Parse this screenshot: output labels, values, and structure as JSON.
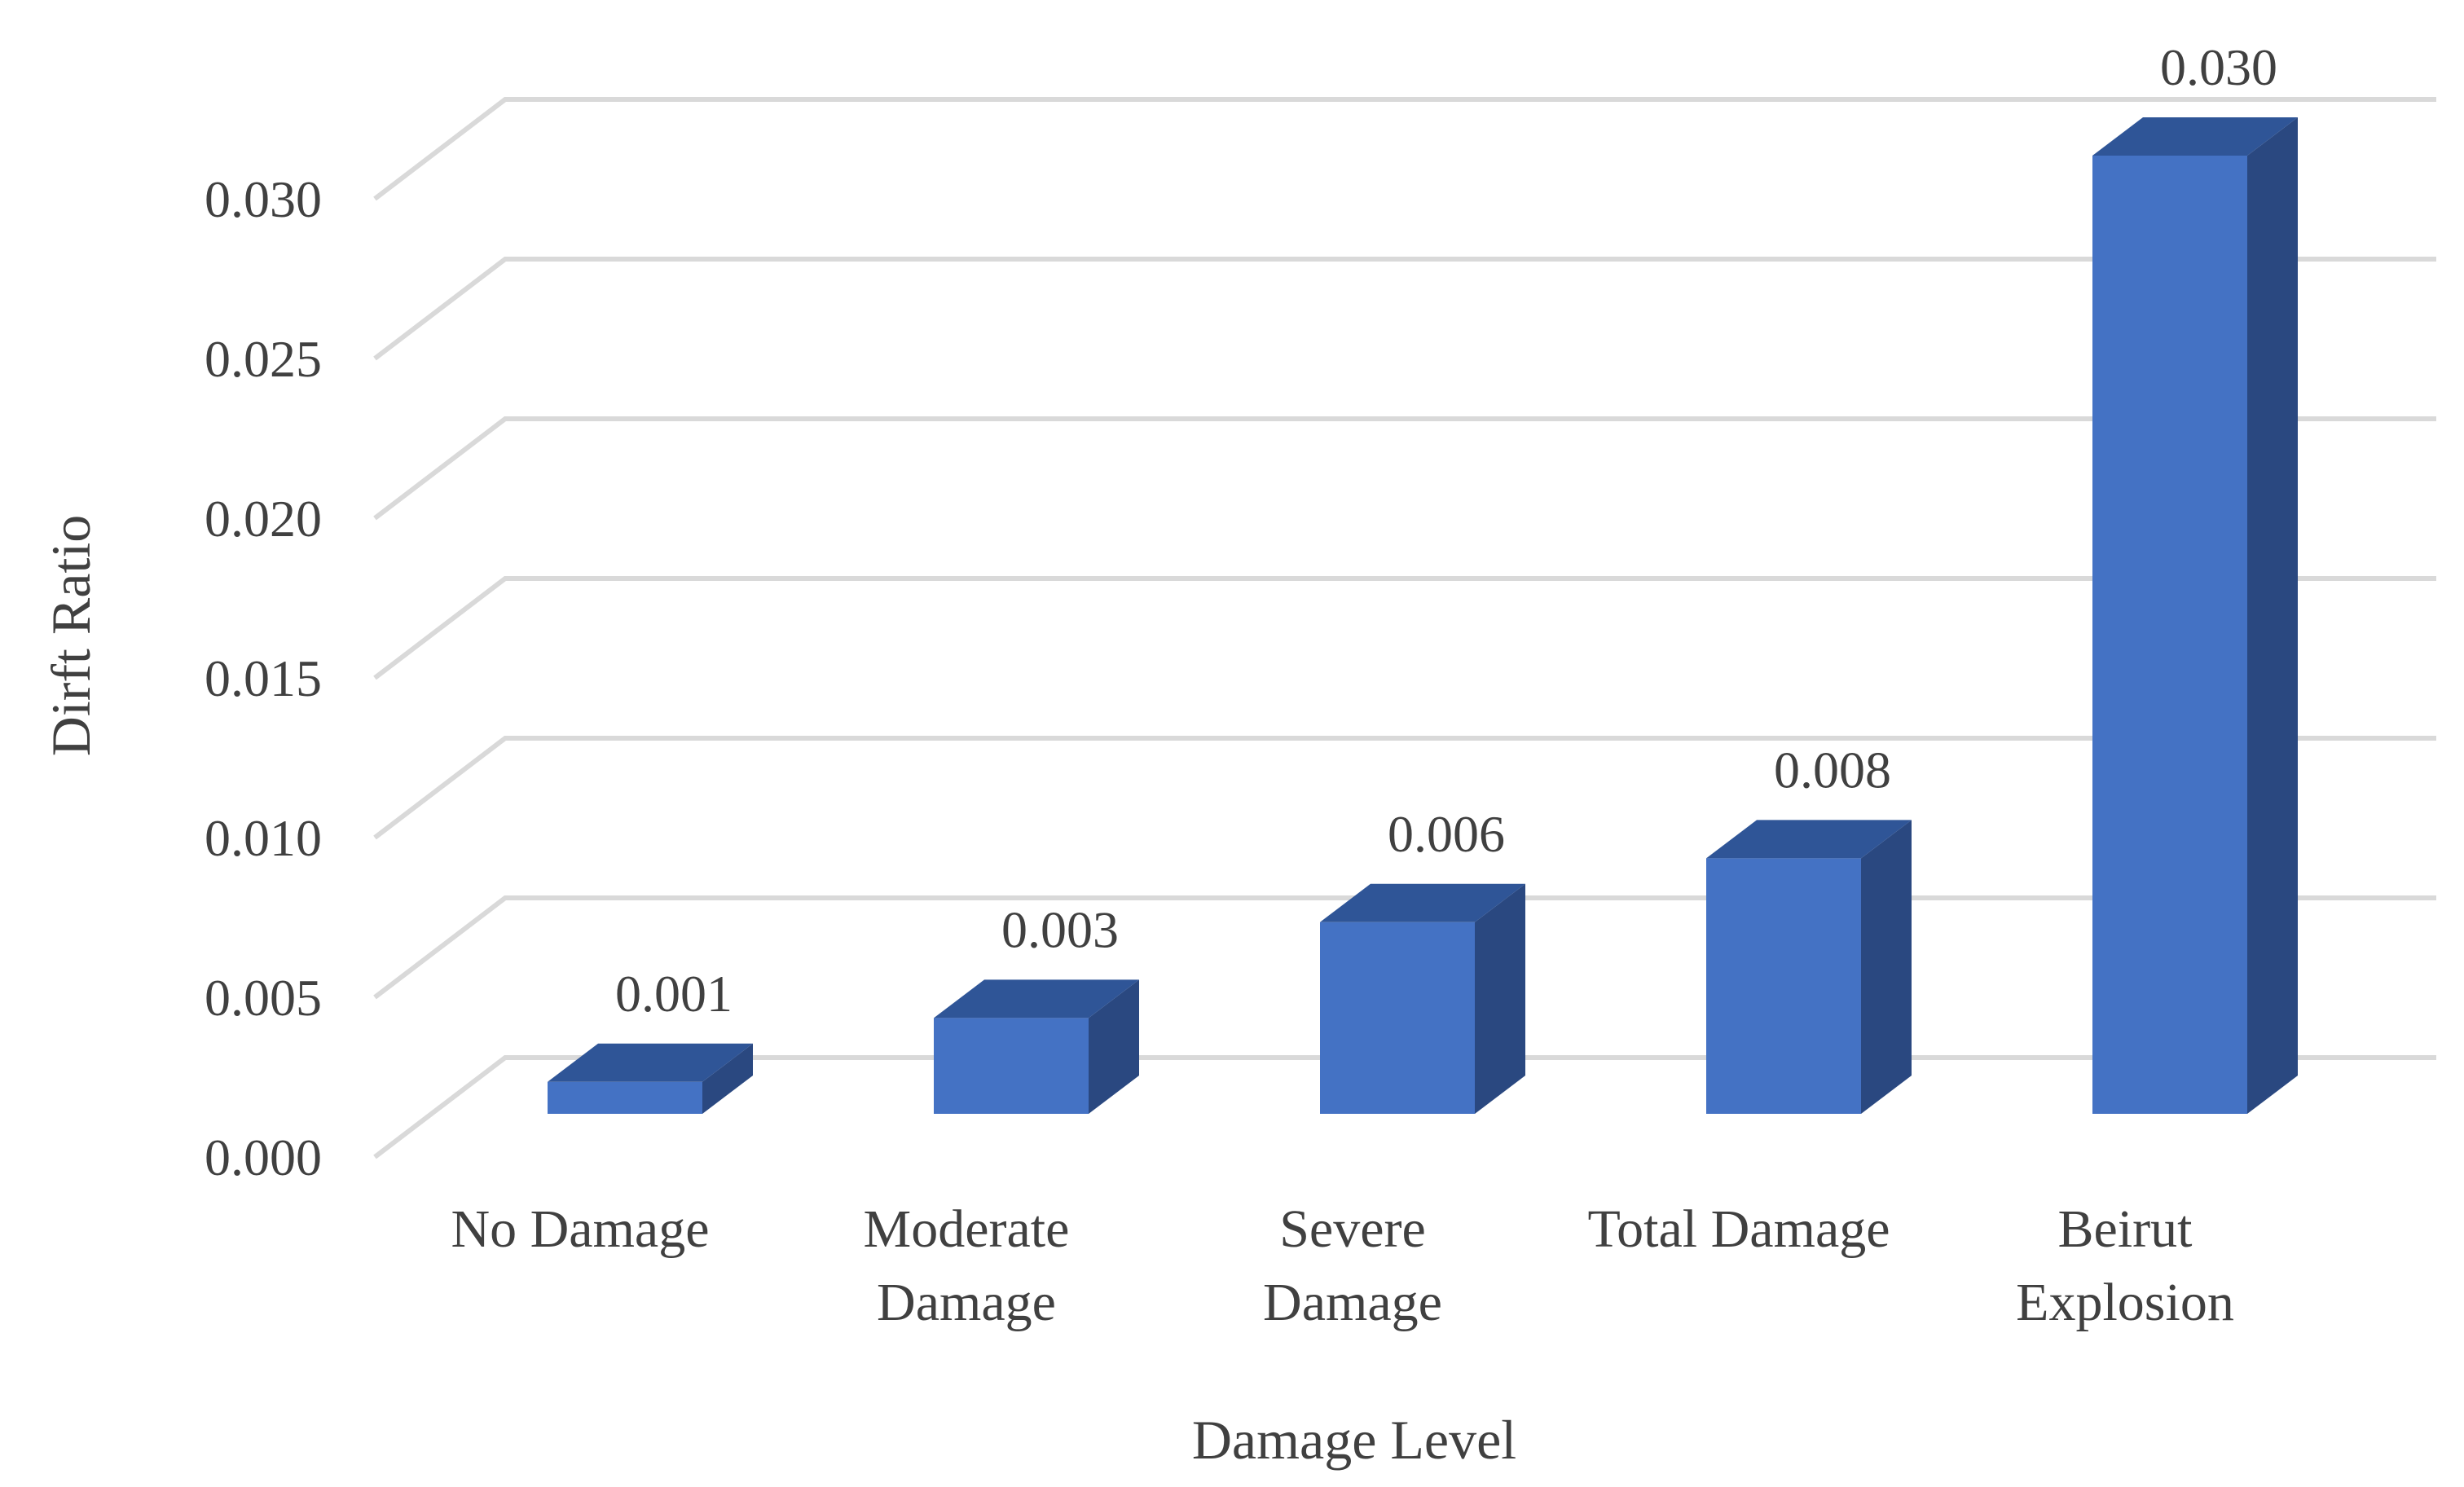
{
  "chart_data": {
    "type": "bar",
    "title": "",
    "xlabel": "Damage Level",
    "ylabel": "Dirft Ratio",
    "categories": [
      [
        "No Damage"
      ],
      [
        "Moderate",
        "Damage"
      ],
      [
        "Severe",
        "Damage"
      ],
      [
        "Total Damage"
      ],
      [
        "Beirut",
        "Explosion"
      ]
    ],
    "values": [
      0.001,
      0.003,
      0.006,
      0.008,
      0.03
    ],
    "data_labels": [
      "0.001",
      "0.003",
      "0.006",
      "0.008",
      "0.030"
    ],
    "yticks": [
      "0.000",
      "0.005",
      "0.010",
      "0.015",
      "0.020",
      "0.025",
      "0.030"
    ],
    "ylim": [
      0,
      0.032
    ],
    "grid": true,
    "legend": "none",
    "style": "3d-column",
    "colors": {
      "bar_front": "#4472C4",
      "bar_top": "#2F5597",
      "bar_side": "#2A4880",
      "grid": "#D9D9D9",
      "text": "#404040"
    }
  }
}
